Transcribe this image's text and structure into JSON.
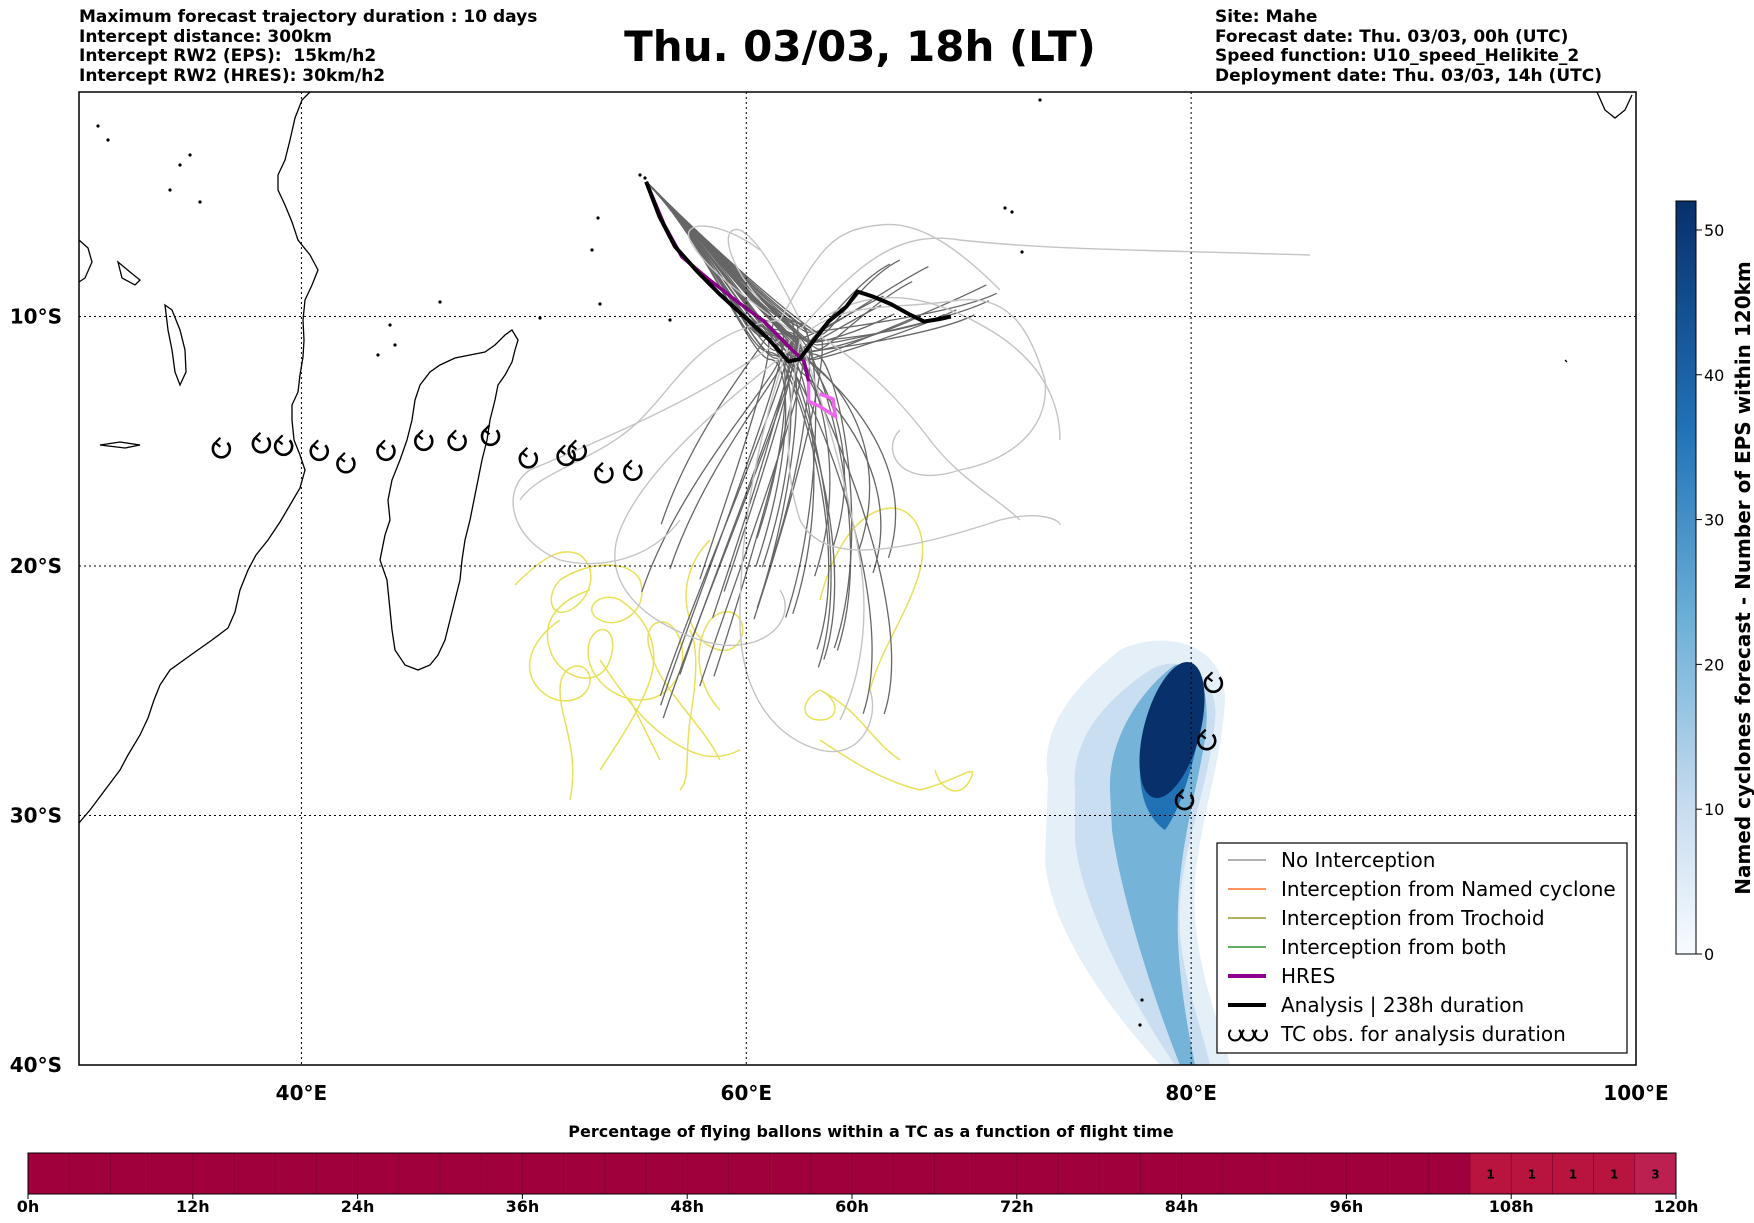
{
  "header": {
    "left_lines": [
      "Maximum forecast trajectory duration : 10 days",
      "Intercept distance: 300km",
      "Intercept RW2 (EPS):  15km/h2",
      "Intercept RW2 (HRES): 30km/h2"
    ],
    "title": "Thu. 03/03, 18h (LT)",
    "right_lines": [
      "Site: Mahe",
      "Forecast date: Thu. 03/03, 00h (UTC)",
      "Speed function: U10_speed_Helikite_2",
      "Deployment date: Thu. 03/03, 14h (UTC)"
    ]
  },
  "map": {
    "lon_range": [
      30,
      100
    ],
    "lat_range": [
      -40,
      -1
    ],
    "lon_ticks": [
      {
        "value": 40,
        "label": "40°E"
      },
      {
        "value": 60,
        "label": "60°E"
      },
      {
        "value": 80,
        "label": "80°E"
      },
      {
        "value": 100,
        "label": "100°E"
      }
    ],
    "lat_ticks": [
      {
        "value": -10,
        "label": "10°S"
      },
      {
        "value": -20,
        "label": "20°S"
      },
      {
        "value": -30,
        "label": "30°S"
      },
      {
        "value": -40,
        "label": "40°S"
      }
    ],
    "grid": true,
    "launch_site": {
      "lon": 55.5,
      "lat": -4.6
    },
    "analysis_track": [
      [
        55.5,
        -4.6
      ],
      [
        56.1,
        -6.0
      ],
      [
        56.8,
        -7.2
      ],
      [
        57.8,
        -8.2
      ],
      [
        58.8,
        -9.1
      ],
      [
        59.9,
        -10.0
      ],
      [
        61.0,
        -10.9
      ],
      [
        61.9,
        -11.8
      ],
      [
        62.4,
        -11.7
      ],
      [
        63.0,
        -11.0
      ],
      [
        63.7,
        -10.2
      ],
      [
        64.5,
        -9.6
      ],
      [
        65.0,
        -9.0
      ],
      [
        65.7,
        -9.2
      ],
      [
        66.5,
        -9.5
      ],
      [
        67.3,
        -9.9
      ],
      [
        68.0,
        -10.2
      ],
      [
        68.7,
        -10.1
      ],
      [
        69.2,
        -10.0
      ]
    ],
    "hres_track": [
      [
        55.5,
        -4.6
      ],
      [
        56.3,
        -6.3
      ],
      [
        57.1,
        -7.6
      ],
      [
        58.3,
        -8.5
      ],
      [
        59.6,
        -9.4
      ],
      [
        60.8,
        -10.2
      ],
      [
        61.8,
        -11.1
      ],
      [
        62.6,
        -11.8
      ],
      [
        62.8,
        -12.6
      ],
      [
        62.8,
        -13.4
      ],
      [
        63.3,
        -13.6
      ],
      [
        64.0,
        -14.0
      ],
      [
        63.9,
        -13.3
      ],
      [
        63.3,
        -13.1
      ]
    ],
    "tc_obs": [
      [
        36.4,
        -15.3
      ],
      [
        38.2,
        -15.1
      ],
      [
        39.2,
        -15.2
      ],
      [
        40.8,
        -15.4
      ],
      [
        42.0,
        -15.9
      ],
      [
        43.8,
        -15.4
      ],
      [
        45.5,
        -15.0
      ],
      [
        47.0,
        -15.0
      ],
      [
        48.5,
        -14.8
      ],
      [
        50.2,
        -15.7
      ],
      [
        51.9,
        -15.6
      ],
      [
        52.4,
        -15.4
      ],
      [
        53.6,
        -16.3
      ],
      [
        54.9,
        -16.2
      ],
      [
        81.0,
        -24.7
      ],
      [
        80.7,
        -27.0
      ],
      [
        79.7,
        -29.4
      ]
    ],
    "cyclone_density_peak": {
      "lon": 80.0,
      "lat": -27.0
    }
  },
  "legend": {
    "items": [
      {
        "label": "No Interception",
        "color": "#808080"
      },
      {
        "label": "Interception from Named cyclone",
        "color": "#ff5500"
      },
      {
        "label": "Interception from Trochoid",
        "color": "#808000"
      },
      {
        "label": "Interception from both",
        "color": "#008000"
      },
      {
        "label": "HRES",
        "color": "#8b008b"
      },
      {
        "label": "Analysis | 238h duration",
        "color": "#000000"
      },
      {
        "label": "TC obs. for analysis duration",
        "color": "#000000"
      }
    ]
  },
  "colorbar": {
    "label": "Named cyclones forecast - Number of EPS within 120km",
    "min": 0,
    "max": 52,
    "ticks": [
      "0",
      "10",
      "20",
      "30",
      "40",
      "50"
    ],
    "colors": [
      "#f7fbff",
      "#08306b"
    ]
  },
  "flight_bar": {
    "title": "Percentage of flying ballons within a TC as a function of flight time",
    "ticks": [
      "0h",
      "12h",
      "24h",
      "36h",
      "48h",
      "60h",
      "72h",
      "84h",
      "96h",
      "108h",
      "120h"
    ],
    "cell_hours": 3,
    "annotated_cells": [
      {
        "hour_start": 105,
        "value": 1
      },
      {
        "hour_start": 108,
        "value": 1
      },
      {
        "hour_start": 111,
        "value": 1
      },
      {
        "hour_start": 114,
        "value": 1
      },
      {
        "hour_start": 117,
        "value": 3
      }
    ],
    "base_color": "#a0003c",
    "annotated_color": "#b8143f"
  }
}
